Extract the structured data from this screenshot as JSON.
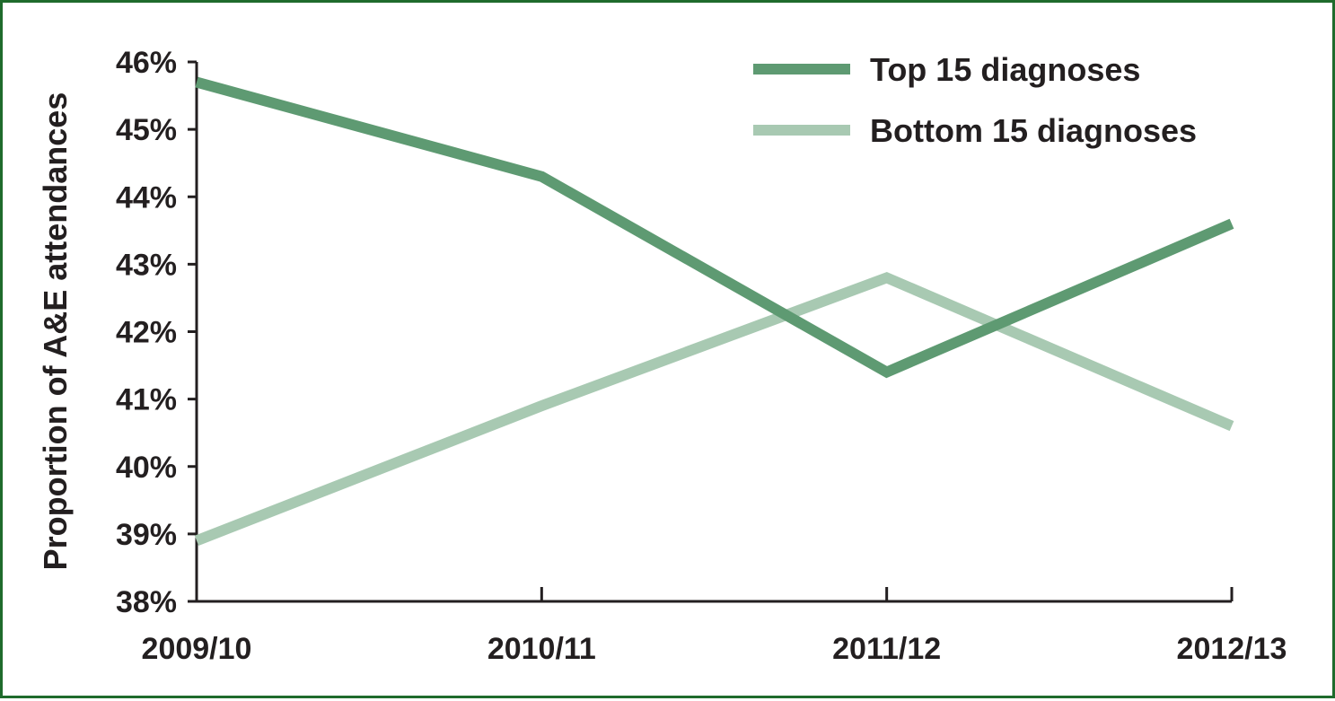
{
  "chart_data": {
    "type": "line",
    "title": "",
    "xlabel": "",
    "ylabel": "Proportion of A&E attendances",
    "categories": [
      "2009/10",
      "2010/11",
      "2011/12",
      "2012/13"
    ],
    "ylim": [
      38,
      46
    ],
    "yticks": [
      "38%",
      "39%",
      "40%",
      "41%",
      "42%",
      "43%",
      "44%",
      "45%",
      "46%"
    ],
    "grid": false,
    "legend_position": "top-right",
    "series": [
      {
        "name": "Top 15 diagnoses",
        "values": [
          45.7,
          44.3,
          41.4,
          43.6
        ],
        "color": "#5e9a72"
      },
      {
        "name": "Bottom 15 diagnoses",
        "values": [
          38.9,
          40.9,
          42.8,
          40.6
        ],
        "color": "#a8c9b2"
      }
    ]
  },
  "frame_color": "#1f6b2c"
}
